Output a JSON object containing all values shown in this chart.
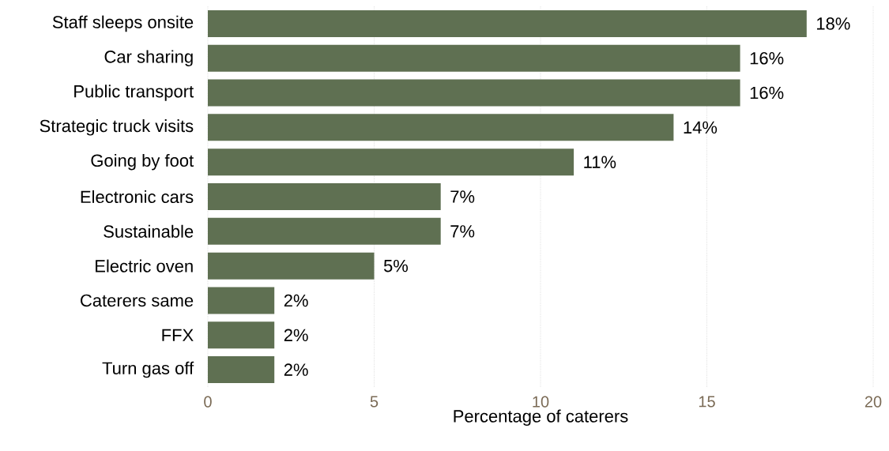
{
  "chart_data": {
    "type": "bar",
    "orientation": "horizontal",
    "xlabel": "Percentage of caterers",
    "categories": [
      "Staff sleeps onsite",
      "Car sharing",
      "Public transport",
      "Strategic truck visits",
      "Going by foot",
      "Electronic cars",
      "Sustainable",
      "Electric oven",
      "Caterers same",
      "FFX",
      "Turn gas off"
    ],
    "values": [
      18,
      16,
      16,
      14,
      11,
      7,
      7,
      5,
      2,
      2,
      2
    ],
    "value_labels": [
      "18%",
      "16%",
      "16%",
      "14%",
      "11%",
      "7%",
      "7%",
      "5%",
      "2%",
      "2%",
      "2%"
    ],
    "color": "#5f7052",
    "xlim": [
      0,
      20
    ],
    "xticks": [
      0,
      5,
      10,
      15,
      20
    ],
    "grid": "x"
  }
}
